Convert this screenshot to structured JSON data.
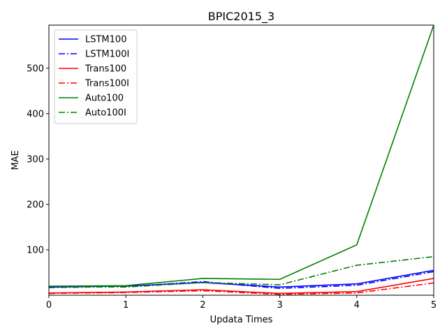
{
  "chart_data": {
    "type": "line",
    "title": "BPIC2015_3",
    "xlabel": "Updata Times",
    "ylabel": "MAE",
    "x": [
      0,
      1,
      2,
      3,
      4,
      5
    ],
    "xlim": [
      0,
      5
    ],
    "ylim": [
      0,
      595
    ],
    "xticks": [
      0,
      1,
      2,
      3,
      4,
      5
    ],
    "yticks": [
      100,
      200,
      300,
      400,
      500
    ],
    "grid": false,
    "legend_position": "top-left",
    "series": [
      {
        "name": "LSTM100",
        "color": "#0000ff",
        "style": "solid",
        "values": [
          18,
          20,
          28,
          18,
          25,
          55
        ]
      },
      {
        "name": "LSTM100I",
        "color": "#0000ff",
        "style": "dashdot",
        "values": [
          17,
          19,
          30,
          15,
          22,
          52
        ]
      },
      {
        "name": "Trans100",
        "color": "#ff0000",
        "style": "solid",
        "values": [
          5,
          7,
          12,
          4,
          8,
          37
        ]
      },
      {
        "name": "Trans100I",
        "color": "#ff0000",
        "style": "dashdot",
        "values": [
          4,
          6,
          10,
          2,
          5,
          27
        ]
      },
      {
        "name": "Auto100",
        "color": "#008000",
        "style": "solid",
        "values": [
          20,
          21,
          37,
          35,
          111,
          595
        ]
      },
      {
        "name": "Auto100I",
        "color": "#008000",
        "style": "dashdot",
        "values": [
          19,
          18,
          28,
          23,
          66,
          85
        ]
      }
    ]
  }
}
